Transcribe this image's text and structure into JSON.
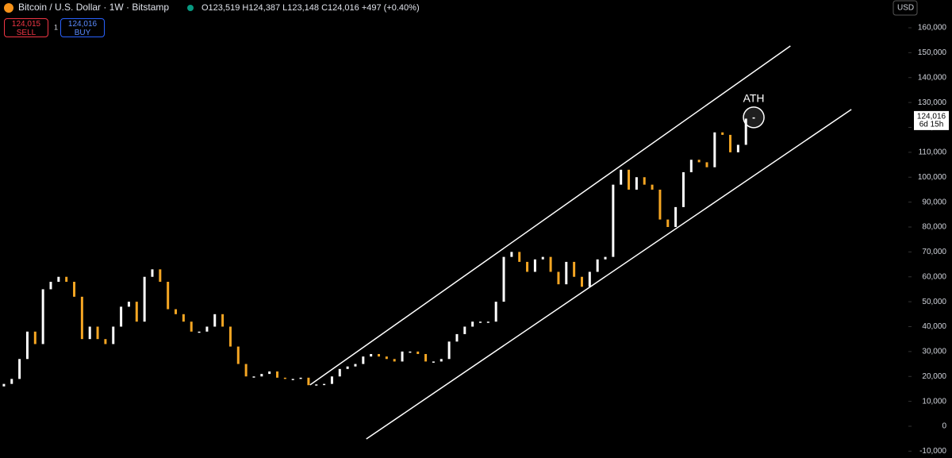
{
  "header": {
    "title": "Bitcoin / U.S. Dollar · 1W · Bitstamp",
    "ohlc": "O123,519 H124,387 L123,148 C124,016 +497 (+0.40%)",
    "sell_price": "124,015",
    "sell": "SELL",
    "spread": "1",
    "buy_price": "124,016",
    "buy": "BUY",
    "currency": "USD"
  },
  "chart_data": {
    "type": "candlestick",
    "open": [
      16000,
      17000,
      19000,
      27000,
      38000,
      33000,
      55000,
      58000,
      60000,
      58000,
      52000,
      35000,
      40000,
      35000,
      33000,
      40000,
      48000,
      50000,
      42000,
      60000,
      63000,
      58000,
      47000,
      45000,
      42000,
      38000,
      38000,
      40000,
      45000,
      40000,
      32000,
      25000,
      20000,
      20000,
      21000,
      22000,
      19500,
      19000,
      19000,
      19500,
      16500,
      16800,
      17000,
      20000,
      23000,
      24000,
      25000,
      28000,
      29000,
      28000,
      27000,
      26000,
      30000,
      30000,
      29000,
      26000,
      26000,
      27000,
      34000,
      37000,
      40000,
      42000,
      42000,
      42000,
      50000,
      68000,
      70000,
      66000,
      62000,
      67000,
      68000,
      62000,
      57000,
      66000,
      60000,
      56000,
      62000,
      67000,
      68000,
      97000,
      103000,
      95000,
      100000,
      97000,
      95000,
      83000,
      80000,
      88000,
      102000,
      107000,
      106000,
      104000,
      118000,
      117000,
      110000,
      113000,
      123519
    ],
    "close": [
      17000,
      19000,
      27000,
      38000,
      33000,
      55000,
      58000,
      60000,
      58000,
      52000,
      35000,
      40000,
      35000,
      33000,
      40000,
      48000,
      50000,
      42000,
      60000,
      63000,
      58000,
      47000,
      45000,
      42000,
      38000,
      38000,
      40000,
      45000,
      40000,
      32000,
      25000,
      20000,
      20000,
      21000,
      22000,
      19500,
      19000,
      19000,
      19500,
      16500,
      16800,
      17000,
      20000,
      23000,
      24000,
      25000,
      28000,
      29000,
      28000,
      27000,
      26000,
      30000,
      30000,
      29000,
      26000,
      26000,
      27000,
      34000,
      37000,
      40000,
      42000,
      42000,
      42000,
      50000,
      68000,
      70000,
      66000,
      62000,
      67000,
      68000,
      62000,
      57000,
      66000,
      60000,
      56000,
      62000,
      67000,
      68000,
      97000,
      103000,
      95000,
      100000,
      97000,
      95000,
      83000,
      80000,
      88000,
      102000,
      107000,
      106000,
      104000,
      118000,
      117000,
      110000,
      113000,
      123519,
      124016
    ],
    "up_color": "#ffffff",
    "down_color": "#f5a623",
    "ylim": [
      -12750,
      171150
    ],
    "yticks": [
      {
        "value": 160000,
        "label": "160,000"
      },
      {
        "value": 150000,
        "label": "150,000"
      },
      {
        "value": 140000,
        "label": "140,000"
      },
      {
        "value": 130000,
        "label": "130,000"
      },
      {
        "value": 120000,
        "label": "120,000"
      },
      {
        "value": 110000,
        "label": "110,000"
      },
      {
        "value": 100000,
        "label": "100,000"
      },
      {
        "value": 90000,
        "label": "90,000"
      },
      {
        "value": 80000,
        "label": "80,000"
      },
      {
        "value": 70000,
        "label": "70,000"
      },
      {
        "value": 60000,
        "label": "60,000"
      },
      {
        "value": 50000,
        "label": "50,000"
      },
      {
        "value": 40000,
        "label": "40,000"
      },
      {
        "value": 30000,
        "label": "30,000"
      },
      {
        "value": 20000,
        "label": "20,000"
      },
      {
        "value": 10000,
        "label": "10,000"
      },
      0,
      {
        "value": -10000,
        "label": "-10,000"
      }
    ],
    "last_price": {
      "value": 124016,
      "label": "124,016"
    },
    "countdown": "6d 15h",
    "channel": [
      {
        "x": [
          39.2,
          100.7
        ],
        "y": [
          16600,
          152700
        ]
      },
      {
        "x": [
          46.4,
          108.5
        ],
        "y": [
          -5100,
          127200
        ]
      }
    ],
    "annotation": "ATH"
  }
}
